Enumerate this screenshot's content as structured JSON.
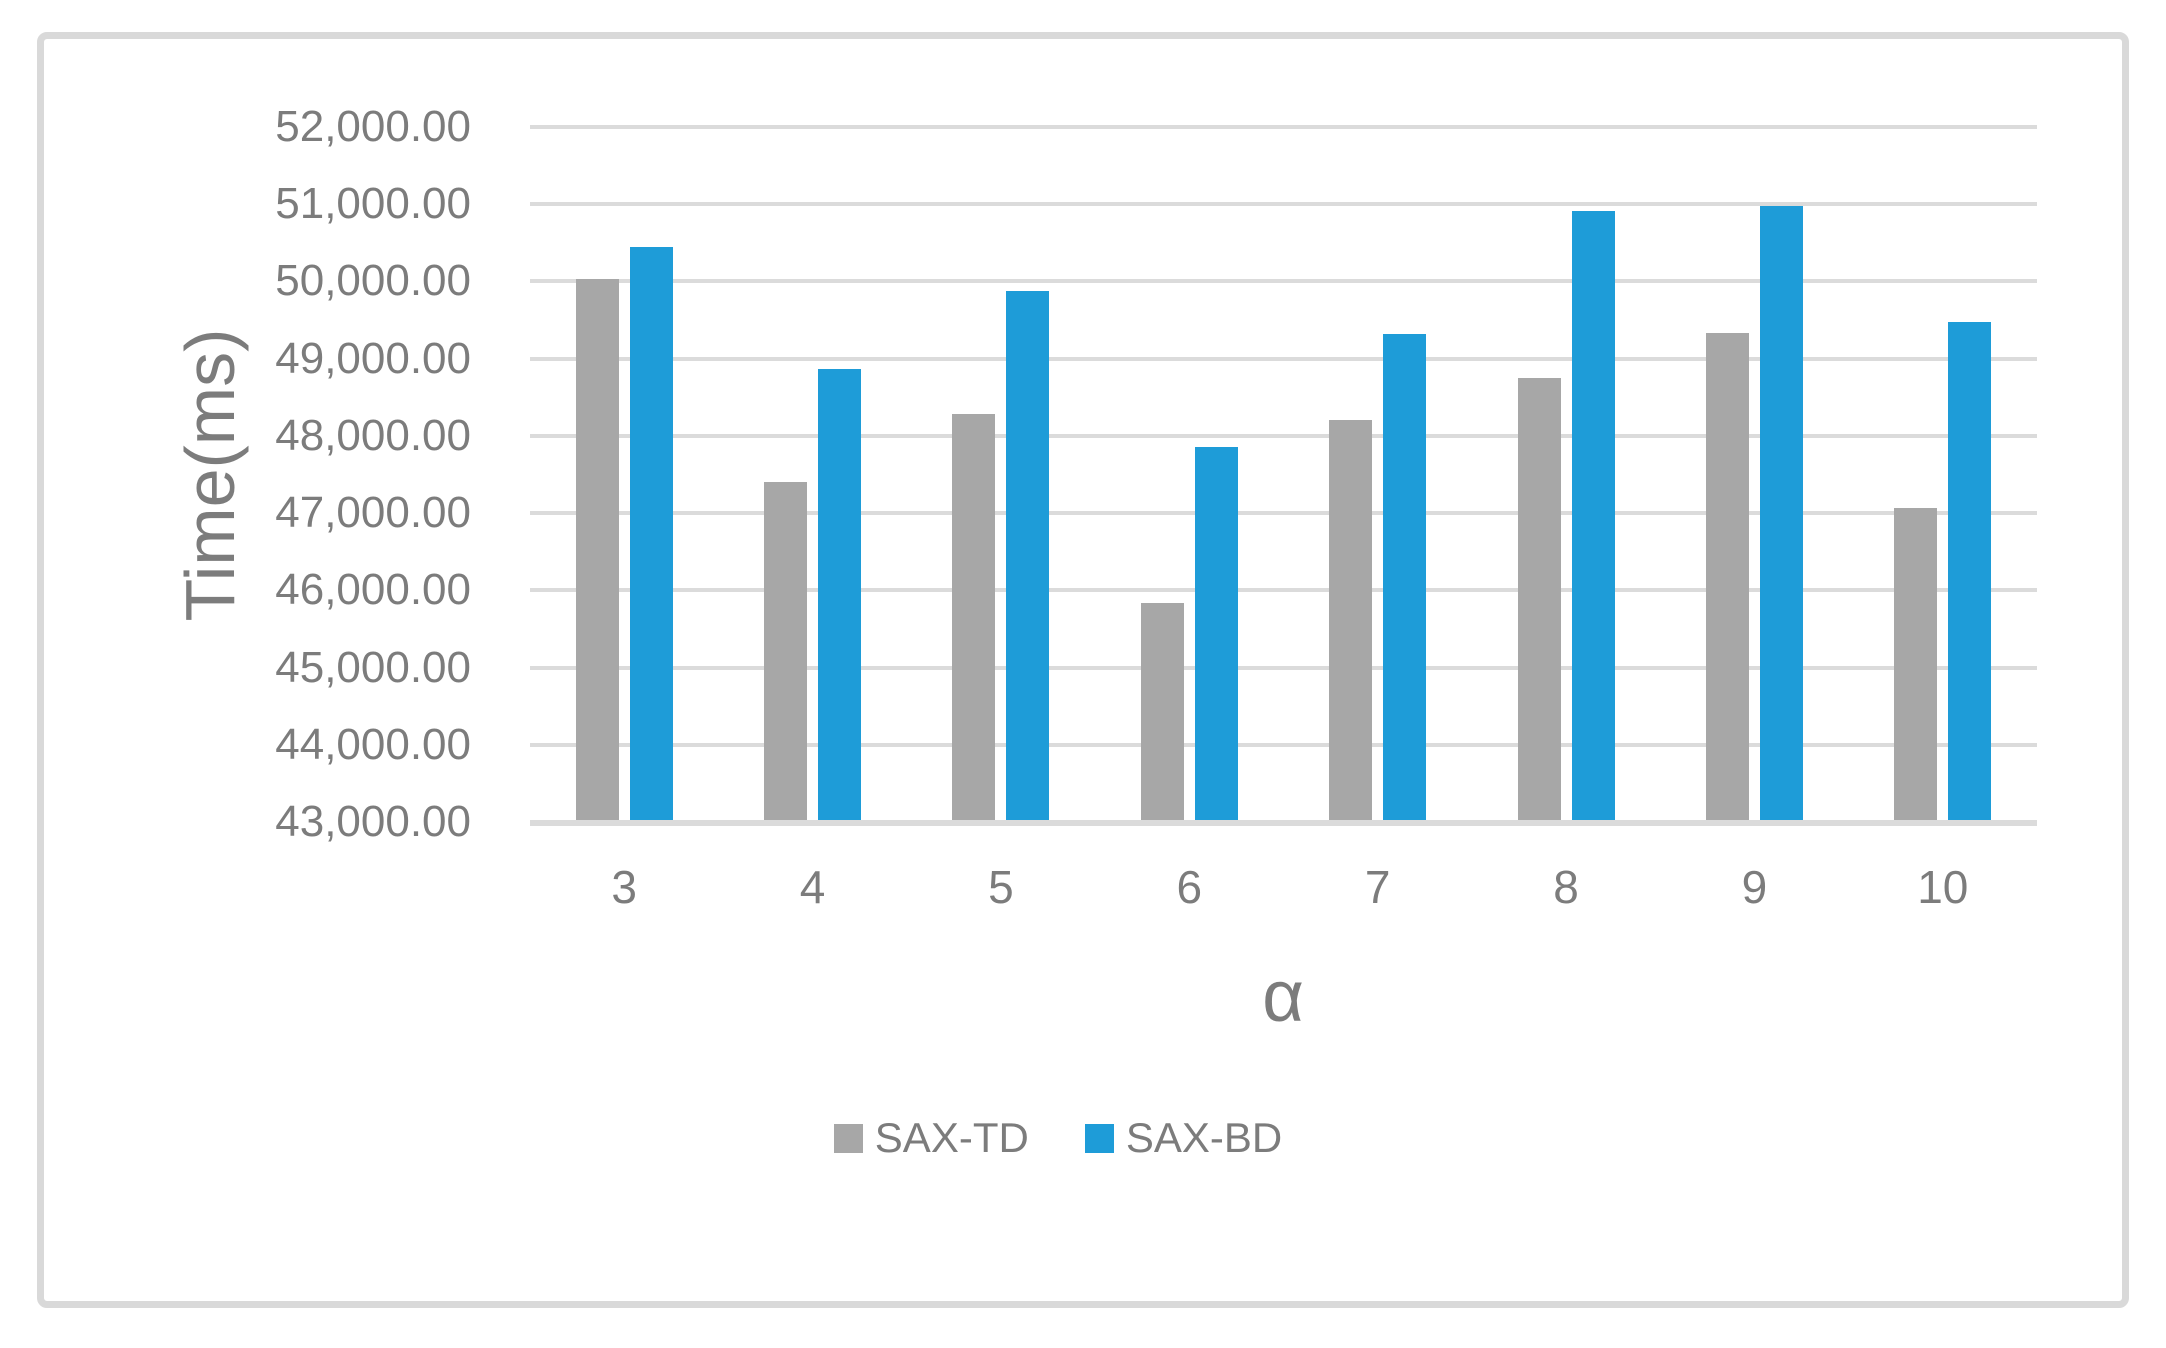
{
  "chart_data": {
    "type": "bar",
    "title": "",
    "xlabel": "α",
    "ylabel": "Time(ms)",
    "categories": [
      "3",
      "4",
      "5",
      "6",
      "7",
      "8",
      "9",
      "10"
    ],
    "series": [
      {
        "name": "SAX-TD",
        "color": "#A7A7A7",
        "values": [
          50030,
          47400,
          48280,
          45840,
          48210,
          48750,
          49330,
          47070
        ]
      },
      {
        "name": "SAX-BD",
        "color": "#1E9CD8",
        "values": [
          50440,
          48860,
          49880,
          47860,
          49320,
          50910,
          50980,
          49480
        ]
      }
    ],
    "ylim": [
      43000,
      52000
    ],
    "ytick_step": 1000,
    "ytick_labels": [
      "43,000.00",
      "44,000.00",
      "45,000.00",
      "46,000.00",
      "47,000.00",
      "48,000.00",
      "49,000.00",
      "50,000.00",
      "51,000.00",
      "52,000.00"
    ],
    "grid": true,
    "legend_position": "bottom",
    "colors": {
      "gridline": "#DBDBDB",
      "axis_text": "#7C7C7C",
      "chart_border": "#D9D9D9",
      "background": "#FFFFFF"
    }
  }
}
